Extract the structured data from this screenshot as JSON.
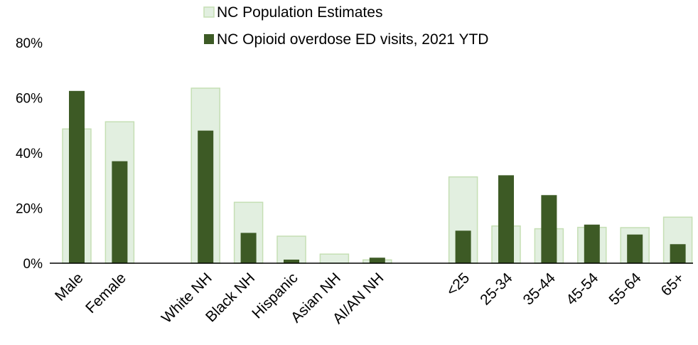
{
  "chart_data": {
    "type": "bar",
    "title": "",
    "xlabel": "",
    "ylabel": "",
    "ylim": [
      0,
      80
    ],
    "y_ticks": [
      0,
      20,
      40,
      60,
      80
    ],
    "y_tick_labels": [
      "0%",
      "20%",
      "40%",
      "60%",
      "80%"
    ],
    "grid": false,
    "legend_position": "top-center",
    "categories": [
      "Male",
      "Female",
      "White NH",
      "Black NH",
      "Hispanic",
      "Asian NH",
      "AI/AN NH",
      "<25",
      "25-34",
      "35-44",
      "45-54",
      "55-64",
      "65+"
    ],
    "category_groups": [
      [
        "Male",
        "Female"
      ],
      [
        "White NH",
        "Black NH",
        "Hispanic",
        "Asian NH",
        "AI/AN NH"
      ],
      [
        "<25",
        "25-34",
        "35-44",
        "45-54",
        "55-64",
        "65+"
      ]
    ],
    "series": [
      {
        "name": "NC Population Estimates",
        "color": "#e2efe0",
        "edge_color": "#c5dfb4",
        "values": [
          48.7,
          51.3,
          63.5,
          22.1,
          9.8,
          3.3,
          1.2,
          31.3,
          13.5,
          12.5,
          13.0,
          12.9,
          16.7
        ]
      },
      {
        "name": "NC Opioid overdose ED visits, 2021 YTD",
        "color": "#3d5a25",
        "values": [
          62.5,
          37.0,
          48.1,
          11.0,
          1.3,
          0.0,
          2.0,
          11.8,
          31.9,
          24.7,
          14.0,
          10.4,
          6.9
        ]
      }
    ]
  }
}
